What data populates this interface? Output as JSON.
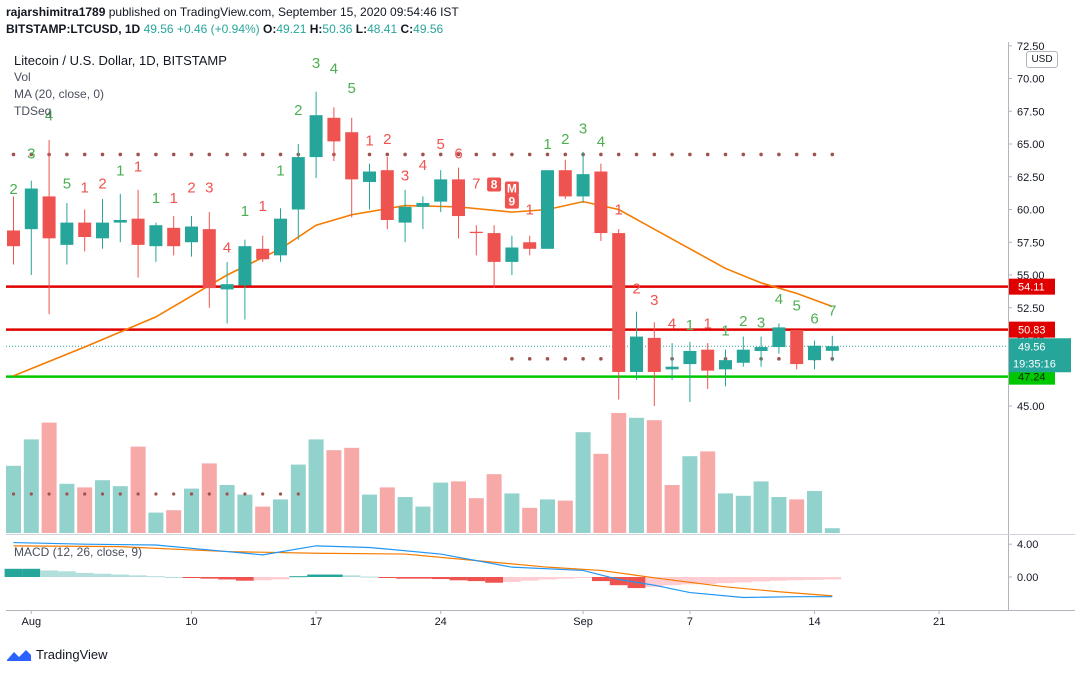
{
  "header": {
    "user": "rajarshimitra1789",
    "published": "published on TradingView.com, September 15, 2020 09:54:46 IST",
    "symbol": "BITSTAMP:LTCUSD, 1D",
    "last": "49.56",
    "change": "+0.46 (+0.94%)",
    "o_label": "O:",
    "o": "49.21",
    "h_label": "H:",
    "h": "50.36",
    "l_label": "L:",
    "l": "48.41",
    "c_label": "C:",
    "c": "49.56"
  },
  "legend": {
    "title": "Litecoin / U.S. Dollar, 1D, BITSTAMP",
    "vol": "Vol",
    "ma": "MA (20, close, 0)",
    "tdseq": "TDSeq",
    "macd": "MACD (12, 26, close, 9)"
  },
  "currency_badge": "USD",
  "footer": {
    "brand": "TradingView"
  },
  "colors": {
    "up": "#26a69a",
    "down": "#ef5350",
    "ma": "#f57c00",
    "macd_line": "#2196f3",
    "signal_line": "#f57c00",
    "red_level": "#e00000",
    "green_level": "#00c800",
    "td_up": "#4caf50",
    "td_down": "#ef5350",
    "dots": "#a0524d"
  },
  "chart_data": {
    "type": "candlestick",
    "title": "Litecoin / U.S. Dollar, 1D, BITSTAMP",
    "ylim": [
      43.5,
      72.8
    ],
    "y_ticks": [
      "45.00",
      "47.50",
      "50.00",
      "52.50",
      "55.00",
      "57.50",
      "60.00",
      "62.50",
      "65.00",
      "67.50",
      "70.00",
      "72.50"
    ],
    "x_ticks": [
      {
        "label": "Aug",
        "day": 1
      },
      {
        "label": "10",
        "day": 10
      },
      {
        "label": "17",
        "day": 17
      },
      {
        "label": "24",
        "day": 24
      },
      {
        "label": "Sep",
        "day": 32
      },
      {
        "label": "7",
        "day": 38
      },
      {
        "label": "14",
        "day": 45
      },
      {
        "label": "21",
        "day": 52
      }
    ],
    "candles": [
      {
        "day": 0,
        "o": 58.4,
        "h": 61.0,
        "l": 55.8,
        "c": 57.2
      },
      {
        "day": 1,
        "o": 58.5,
        "h": 62.2,
        "l": 55.0,
        "c": 61.6
      },
      {
        "day": 2,
        "o": 61.0,
        "h": 65.3,
        "l": 52.0,
        "c": 57.8
      },
      {
        "day": 3,
        "o": 57.3,
        "h": 60.5,
        "l": 55.8,
        "c": 59.0
      },
      {
        "day": 4,
        "o": 59.0,
        "h": 60.0,
        "l": 56.8,
        "c": 57.9
      },
      {
        "day": 5,
        "o": 57.8,
        "h": 60.8,
        "l": 57.0,
        "c": 59.0
      },
      {
        "day": 6,
        "o": 59.0,
        "h": 61.2,
        "l": 57.5,
        "c": 59.2
      },
      {
        "day": 7,
        "o": 59.3,
        "h": 61.5,
        "l": 54.8,
        "c": 57.3
      },
      {
        "day": 8,
        "o": 57.2,
        "h": 59.0,
        "l": 56.0,
        "c": 58.8
      },
      {
        "day": 9,
        "o": 58.6,
        "h": 59.5,
        "l": 56.5,
        "c": 57.2
      },
      {
        "day": 10,
        "o": 57.5,
        "h": 59.5,
        "l": 56.4,
        "c": 58.7
      },
      {
        "day": 11,
        "o": 58.5,
        "h": 59.8,
        "l": 52.5,
        "c": 54.0
      },
      {
        "day": 12,
        "o": 53.9,
        "h": 56.0,
        "l": 51.3,
        "c": 54.3
      },
      {
        "day": 13,
        "o": 54.2,
        "h": 57.7,
        "l": 51.6,
        "c": 57.2
      },
      {
        "day": 14,
        "o": 57.0,
        "h": 58.0,
        "l": 56.0,
        "c": 56.2
      },
      {
        "day": 15,
        "o": 56.5,
        "h": 60.1,
        "l": 56.0,
        "c": 59.3
      },
      {
        "day": 16,
        "o": 60.0,
        "h": 65.0,
        "l": 57.7,
        "c": 64.0
      },
      {
        "day": 17,
        "o": 64.0,
        "h": 69.0,
        "l": 62.4,
        "c": 67.2
      },
      {
        "day": 18,
        "o": 67.0,
        "h": 67.8,
        "l": 63.7,
        "c": 65.2
      },
      {
        "day": 19,
        "o": 65.9,
        "h": 67.0,
        "l": 59.4,
        "c": 62.3
      },
      {
        "day": 20,
        "o": 62.1,
        "h": 63.5,
        "l": 60.0,
        "c": 62.9
      },
      {
        "day": 21,
        "o": 63.0,
        "h": 64.0,
        "l": 58.5,
        "c": 59.2
      },
      {
        "day": 22,
        "o": 59.0,
        "h": 61.5,
        "l": 57.5,
        "c": 60.2
      },
      {
        "day": 23,
        "o": 60.2,
        "h": 61.0,
        "l": 58.5,
        "c": 60.5
      },
      {
        "day": 24,
        "o": 60.6,
        "h": 63.0,
        "l": 59.8,
        "c": 62.3
      },
      {
        "day": 25,
        "o": 62.3,
        "h": 63.2,
        "l": 57.8,
        "c": 59.5
      },
      {
        "day": 26,
        "o": 58.3,
        "h": 58.8,
        "l": 56.5,
        "c": 58.2
      },
      {
        "day": 27,
        "o": 58.2,
        "h": 58.8,
        "l": 54.0,
        "c": 56.0
      },
      {
        "day": 28,
        "o": 56.0,
        "h": 58.0,
        "l": 55.0,
        "c": 57.1
      },
      {
        "day": 29,
        "o": 57.5,
        "h": 58.0,
        "l": 56.5,
        "c": 57.0
      },
      {
        "day": 30,
        "o": 57.0,
        "h": 63.0,
        "l": 57.0,
        "c": 63.0
      },
      {
        "day": 31,
        "o": 63.0,
        "h": 63.8,
        "l": 60.8,
        "c": 61.0
      },
      {
        "day": 32,
        "o": 61.0,
        "h": 64.4,
        "l": 60.5,
        "c": 62.7
      },
      {
        "day": 33,
        "o": 62.9,
        "h": 63.5,
        "l": 57.6,
        "c": 58.2
      },
      {
        "day": 34,
        "o": 58.2,
        "h": 58.5,
        "l": 45.5,
        "c": 47.6
      },
      {
        "day": 35,
        "o": 47.6,
        "h": 52.2,
        "l": 47.0,
        "c": 50.3
      },
      {
        "day": 36,
        "o": 50.2,
        "h": 51.4,
        "l": 45.0,
        "c": 47.6
      },
      {
        "day": 37,
        "o": 47.8,
        "h": 49.8,
        "l": 47.0,
        "c": 48.0
      },
      {
        "day": 38,
        "o": 48.2,
        "h": 49.9,
        "l": 45.3,
        "c": 49.2
      },
      {
        "day": 39,
        "o": 49.3,
        "h": 49.8,
        "l": 46.3,
        "c": 47.7
      },
      {
        "day": 40,
        "o": 47.8,
        "h": 49.3,
        "l": 46.5,
        "c": 48.5
      },
      {
        "day": 41,
        "o": 48.3,
        "h": 50.3,
        "l": 48.0,
        "c": 49.3
      },
      {
        "day": 42,
        "o": 49.2,
        "h": 50.3,
        "l": 48.0,
        "c": 49.5
      },
      {
        "day": 43,
        "o": 49.5,
        "h": 51.3,
        "l": 49.0,
        "c": 51.0
      },
      {
        "day": 44,
        "o": 50.8,
        "h": 50.8,
        "l": 47.8,
        "c": 48.2
      },
      {
        "day": 45,
        "o": 48.5,
        "h": 50.0,
        "l": 47.8,
        "c": 49.6
      },
      {
        "day": 46,
        "o": 49.21,
        "h": 50.36,
        "l": 48.41,
        "c": 49.56
      }
    ],
    "ma20": [
      {
        "day": 0,
        "v": 47.3
      },
      {
        "day": 4,
        "v": 49.5
      },
      {
        "day": 8,
        "v": 51.8
      },
      {
        "day": 12,
        "v": 55.0
      },
      {
        "day": 15,
        "v": 57.0
      },
      {
        "day": 17,
        "v": 58.8
      },
      {
        "day": 19,
        "v": 59.6
      },
      {
        "day": 22,
        "v": 60.3
      },
      {
        "day": 25,
        "v": 60.2
      },
      {
        "day": 28,
        "v": 59.8
      },
      {
        "day": 30,
        "v": 60.0
      },
      {
        "day": 32,
        "v": 60.6
      },
      {
        "day": 34,
        "v": 60.0
      },
      {
        "day": 36,
        "v": 58.5
      },
      {
        "day": 38,
        "v": 57.0
      },
      {
        "day": 40,
        "v": 55.5
      },
      {
        "day": 42,
        "v": 54.4
      },
      {
        "day": 44,
        "v": 53.6
      },
      {
        "day": 46,
        "v": 52.6
      }
    ],
    "volume": [
      {
        "day": 0,
        "v": 0.56,
        "up": true
      },
      {
        "day": 1,
        "v": 0.78,
        "up": true
      },
      {
        "day": 2,
        "v": 0.92,
        "up": false
      },
      {
        "day": 3,
        "v": 0.41,
        "up": true
      },
      {
        "day": 4,
        "v": 0.38,
        "up": false
      },
      {
        "day": 5,
        "v": 0.44,
        "up": true
      },
      {
        "day": 6,
        "v": 0.39,
        "up": true
      },
      {
        "day": 7,
        "v": 0.72,
        "up": false
      },
      {
        "day": 8,
        "v": 0.17,
        "up": true
      },
      {
        "day": 9,
        "v": 0.19,
        "up": false
      },
      {
        "day": 10,
        "v": 0.37,
        "up": true
      },
      {
        "day": 11,
        "v": 0.58,
        "up": false
      },
      {
        "day": 12,
        "v": 0.4,
        "up": true
      },
      {
        "day": 13,
        "v": 0.32,
        "up": true
      },
      {
        "day": 14,
        "v": 0.22,
        "up": false
      },
      {
        "day": 15,
        "v": 0.28,
        "up": true
      },
      {
        "day": 16,
        "v": 0.57,
        "up": true
      },
      {
        "day": 17,
        "v": 0.78,
        "up": true
      },
      {
        "day": 18,
        "v": 0.69,
        "up": false
      },
      {
        "day": 19,
        "v": 0.71,
        "up": false
      },
      {
        "day": 20,
        "v": 0.32,
        "up": true
      },
      {
        "day": 21,
        "v": 0.38,
        "up": false
      },
      {
        "day": 22,
        "v": 0.3,
        "up": true
      },
      {
        "day": 23,
        "v": 0.22,
        "up": true
      },
      {
        "day": 24,
        "v": 0.42,
        "up": true
      },
      {
        "day": 25,
        "v": 0.43,
        "up": false
      },
      {
        "day": 26,
        "v": 0.29,
        "up": false
      },
      {
        "day": 27,
        "v": 0.49,
        "up": false
      },
      {
        "day": 28,
        "v": 0.33,
        "up": true
      },
      {
        "day": 29,
        "v": 0.21,
        "up": false
      },
      {
        "day": 30,
        "v": 0.28,
        "up": true
      },
      {
        "day": 31,
        "v": 0.27,
        "up": false
      },
      {
        "day": 32,
        "v": 0.84,
        "up": true
      },
      {
        "day": 33,
        "v": 0.66,
        "up": false
      },
      {
        "day": 34,
        "v": 1.0,
        "up": false
      },
      {
        "day": 35,
        "v": 0.96,
        "up": true
      },
      {
        "day": 36,
        "v": 0.94,
        "up": false
      },
      {
        "day": 37,
        "v": 0.4,
        "up": false
      },
      {
        "day": 38,
        "v": 0.64,
        "up": true
      },
      {
        "day": 39,
        "v": 0.68,
        "up": false
      },
      {
        "day": 40,
        "v": 0.33,
        "up": true
      },
      {
        "day": 41,
        "v": 0.31,
        "up": true
      },
      {
        "day": 42,
        "v": 0.43,
        "up": true
      },
      {
        "day": 43,
        "v": 0.3,
        "up": true
      },
      {
        "day": 44,
        "v": 0.28,
        "up": false
      },
      {
        "day": 45,
        "v": 0.35,
        "up": true
      },
      {
        "day": 46,
        "v": 0.04,
        "up": true
      }
    ],
    "macd": {
      "ylim": [
        -2.7,
        5.2
      ],
      "ticks": [
        "4.00",
        "0.00"
      ],
      "hist": [
        1.0,
        1.0,
        0.8,
        0.7,
        0.5,
        0.4,
        0.3,
        0.2,
        0.1,
        0.0,
        -0.1,
        -0.2,
        -0.3,
        -0.45,
        -0.4,
        -0.3,
        0.1,
        0.3,
        0.3,
        0.2,
        0.05,
        -0.1,
        -0.2,
        -0.2,
        -0.25,
        -0.4,
        -0.5,
        -0.7,
        -0.6,
        -0.45,
        -0.3,
        -0.2,
        -0.05,
        -0.5,
        -1.0,
        -1.35,
        -1.2,
        -1.0,
        -0.9,
        -0.85,
        -0.75,
        -0.65,
        -0.55,
        -0.45,
        -0.4,
        -0.35,
        -0.3
      ],
      "macd_line": [
        {
          "day": 0,
          "v": 4.2
        },
        {
          "day": 4,
          "v": 4.0
        },
        {
          "day": 8,
          "v": 3.9
        },
        {
          "day": 11,
          "v": 3.3
        },
        {
          "day": 14,
          "v": 2.7
        },
        {
          "day": 17,
          "v": 3.8
        },
        {
          "day": 20,
          "v": 3.6
        },
        {
          "day": 24,
          "v": 2.8
        },
        {
          "day": 28,
          "v": 1.2
        },
        {
          "day": 32,
          "v": 0.8
        },
        {
          "day": 34,
          "v": -0.3
        },
        {
          "day": 36,
          "v": -1.0
        },
        {
          "day": 38,
          "v": -1.9
        },
        {
          "day": 41,
          "v": -2.5
        },
        {
          "day": 44,
          "v": -2.4
        },
        {
          "day": 46,
          "v": -2.4
        }
      ],
      "signal_line": [
        {
          "day": 0,
          "v": 3.8
        },
        {
          "day": 6,
          "v": 3.7
        },
        {
          "day": 12,
          "v": 3.1
        },
        {
          "day": 17,
          "v": 2.9
        },
        {
          "day": 22,
          "v": 2.8
        },
        {
          "day": 26,
          "v": 2.0
        },
        {
          "day": 30,
          "v": 1.2
        },
        {
          "day": 33,
          "v": 0.8
        },
        {
          "day": 36,
          "v": -0.1
        },
        {
          "day": 40,
          "v": -1.2
        },
        {
          "day": 43,
          "v": -1.8
        },
        {
          "day": 46,
          "v": -2.3
        }
      ]
    },
    "levels": [
      {
        "value": 54.11,
        "label": "54.11",
        "color": "#e00000"
      },
      {
        "value": 50.83,
        "label": "50.83",
        "color": "#e00000"
      },
      {
        "value": 47.24,
        "label": "47.24",
        "color": "#00c800"
      }
    ],
    "last_price": {
      "value": 49.56,
      "label": "49.56",
      "countdown": "19:35:16"
    },
    "td_labels": [
      {
        "day": 0,
        "t": "2",
        "up": true,
        "y": 61.2
      },
      {
        "day": 1,
        "t": "3",
        "up": true,
        "y": 63.9
      },
      {
        "day": 2,
        "t": "4",
        "up": true,
        "y": 66.8
      },
      {
        "day": 3,
        "t": "5",
        "up": true,
        "y": 61.6
      },
      {
        "day": 4,
        "t": "1",
        "up": false,
        "y": 61.3
      },
      {
        "day": 5,
        "t": "2",
        "up": false,
        "y": 61.6
      },
      {
        "day": 6,
        "t": "1",
        "up": true,
        "y": 62.6
      },
      {
        "day": 7,
        "t": "1",
        "up": false,
        "y": 62.9
      },
      {
        "day": 8,
        "t": "1",
        "up": true,
        "y": 60.5
      },
      {
        "day": 9,
        "t": "1",
        "up": false,
        "y": 60.5
      },
      {
        "day": 10,
        "t": "2",
        "up": false,
        "y": 61.3
      },
      {
        "day": 11,
        "t": "3",
        "up": false,
        "y": 61.3
      },
      {
        "day": 12,
        "t": "4",
        "up": false,
        "y": 56.7
      },
      {
        "day": 13,
        "t": "1",
        "up": true,
        "y": 59.5
      },
      {
        "day": 14,
        "t": "1",
        "up": false,
        "y": 59.9
      },
      {
        "day": 15,
        "t": "1",
        "up": true,
        "y": 62.6
      },
      {
        "day": 16,
        "t": "2",
        "up": true,
        "y": 67.2
      },
      {
        "day": 17,
        "t": "3",
        "up": true,
        "y": 70.8
      },
      {
        "day": 18,
        "t": "4",
        "up": true,
        "y": 70.4
      },
      {
        "day": 19,
        "t": "5",
        "up": true,
        "y": 68.9
      },
      {
        "day": 20,
        "t": "1",
        "up": false,
        "y": 64.9
      },
      {
        "day": 21,
        "t": "2",
        "up": false,
        "y": 65.0
      },
      {
        "day": 22,
        "t": "3",
        "up": false,
        "y": 62.2
      },
      {
        "day": 23,
        "t": "4",
        "up": false,
        "y": 63.0
      },
      {
        "day": 24,
        "t": "5",
        "up": false,
        "y": 64.6
      },
      {
        "day": 25,
        "t": "6",
        "up": false,
        "y": 63.9
      },
      {
        "day": 26,
        "t": "7",
        "up": false,
        "y": 61.6
      },
      {
        "day": 27,
        "t": "8",
        "up": false,
        "y": 61.6,
        "box": true
      },
      {
        "day": 28,
        "t": "M",
        "up": false,
        "y": 61.3,
        "box": true
      },
      {
        "day": 28,
        "t": "9",
        "up": false,
        "y": 60.3,
        "box": true
      },
      {
        "day": 29,
        "t": "1",
        "up": false,
        "y": 59.6
      },
      {
        "day": 30,
        "t": "1",
        "up": true,
        "y": 64.6
      },
      {
        "day": 31,
        "t": "2",
        "up": true,
        "y": 65.0
      },
      {
        "day": 32,
        "t": "3",
        "up": true,
        "y": 65.8
      },
      {
        "day": 33,
        "t": "4",
        "up": true,
        "y": 64.8
      },
      {
        "day": 34,
        "t": "1",
        "up": false,
        "y": 59.6
      },
      {
        "day": 35,
        "t": "2",
        "up": false,
        "y": 53.6
      },
      {
        "day": 36,
        "t": "3",
        "up": false,
        "y": 52.7
      },
      {
        "day": 37,
        "t": "4",
        "up": false,
        "y": 50.9
      },
      {
        "day": 38,
        "t": "1",
        "up": true,
        "y": 50.8
      },
      {
        "day": 39,
        "t": "1",
        "up": false,
        "y": 50.9
      },
      {
        "day": 40,
        "t": "1",
        "up": true,
        "y": 50.4
      },
      {
        "day": 41,
        "t": "2",
        "up": true,
        "y": 51.1
      },
      {
        "day": 42,
        "t": "3",
        "up": true,
        "y": 51.0
      },
      {
        "day": 43,
        "t": "4",
        "up": true,
        "y": 52.8
      },
      {
        "day": 44,
        "t": "5",
        "up": true,
        "y": 52.3
      },
      {
        "day": 45,
        "t": "6",
        "up": true,
        "y": 51.3
      },
      {
        "day": 46,
        "t": "7",
        "up": true,
        "y": 51.9
      }
    ],
    "resistance_dots": {
      "value": 64.2,
      "from_day": 0,
      "to_day": 46
    },
    "support_dots": {
      "value": 48.6,
      "from_day": 28,
      "to_day": 46
    }
  }
}
